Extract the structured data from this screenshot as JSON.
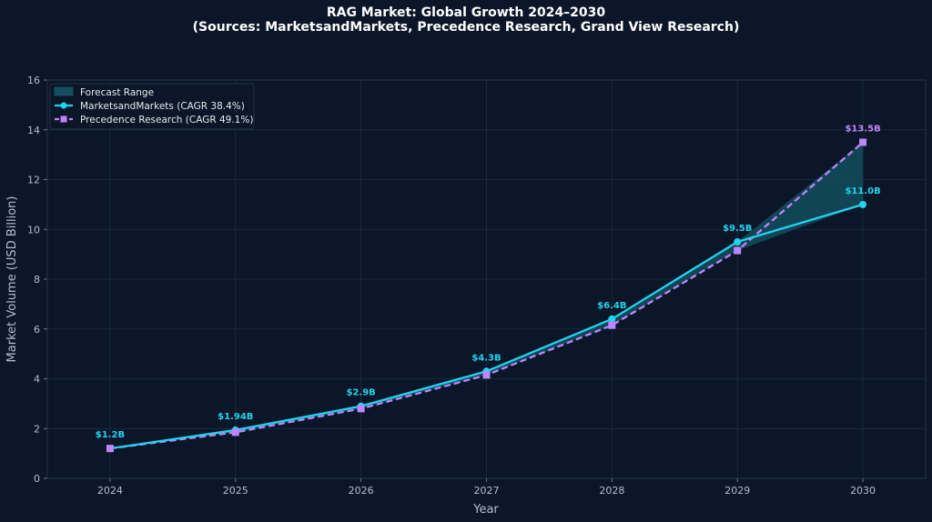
{
  "chart_data": {
    "type": "line",
    "title": "RAG Market: Global Growth 2024–2030",
    "subtitle": "(Sources: MarketsandMarkets, Precedence Research, Grand View Research)",
    "xlabel": "Year",
    "ylabel": "Market Volume (USD Billion)",
    "x": [
      2024,
      2025,
      2026,
      2027,
      2028,
      2029,
      2030
    ],
    "xlim": [
      2023.5,
      2030.5
    ],
    "ylim": [
      0,
      16
    ],
    "yticks": [
      0,
      2,
      4,
      6,
      8,
      10,
      12,
      14,
      16
    ],
    "grid": true,
    "legend_position": "top-left",
    "series": [
      {
        "name": "MarketsandMarkets (CAGR 38.4%)",
        "values": [
          1.2,
          1.94,
          2.9,
          4.3,
          6.4,
          9.5,
          11.0
        ],
        "color": "#22d3ee",
        "marker": "circle",
        "style": "solid",
        "labels": [
          "$1.2B",
          "$1.94B",
          "$2.9B",
          "$4.3B",
          "$6.4B",
          "$9.5B",
          "$11.0B"
        ]
      },
      {
        "name": "Precedence Research (CAGR 49.1%)",
        "values": [
          1.2,
          1.85,
          2.8,
          4.15,
          6.15,
          9.15,
          13.5
        ],
        "color": "#c084fc",
        "marker": "square",
        "style": "dashed",
        "labels": [
          "",
          "",
          "",
          "",
          "",
          "",
          "$13.5B"
        ]
      }
    ],
    "forecast_range": {
      "name": "Forecast Range",
      "color": "#134e5e"
    }
  }
}
